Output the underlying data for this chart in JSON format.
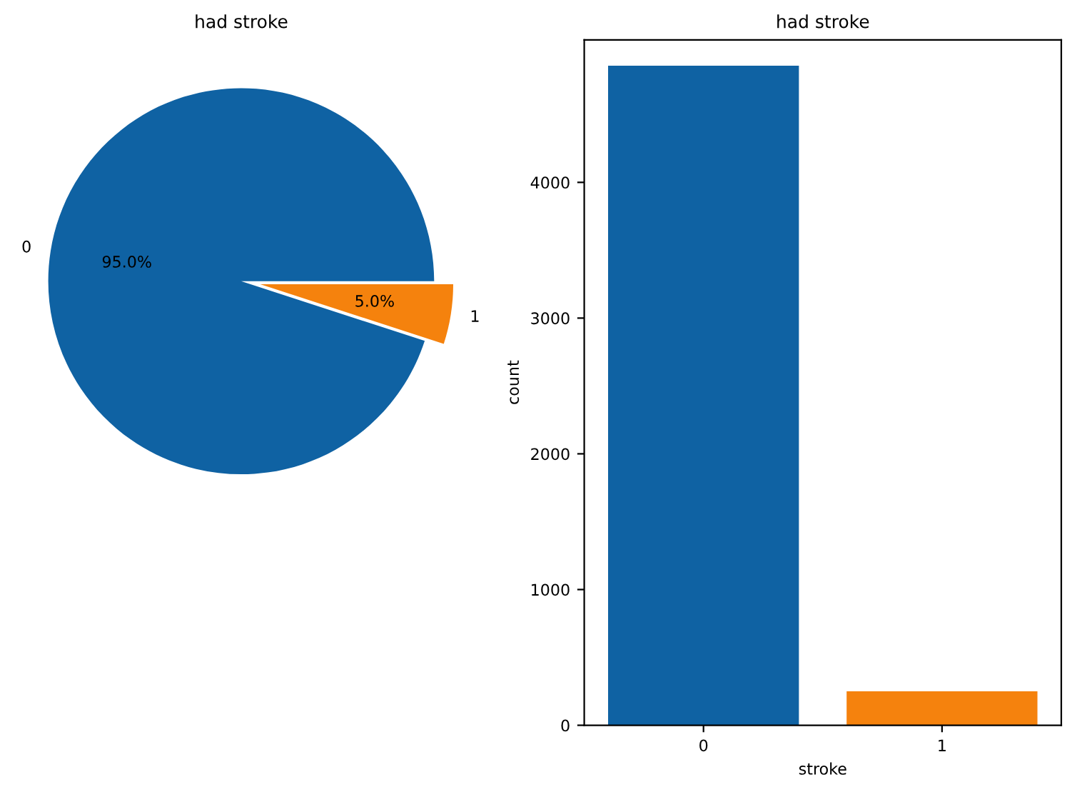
{
  "chart_data": [
    {
      "type": "pie",
      "title": "had stroke",
      "categories": [
        "0",
        "1"
      ],
      "values": [
        95.0,
        5.0
      ],
      "colors": [
        "#0f62a3",
        "#f5820d"
      ],
      "value_labels": [
        "95.0%",
        "5.0%"
      ]
    },
    {
      "type": "bar",
      "title": "had stroke",
      "xlabel": "stroke",
      "ylabel": "count",
      "categories": [
        "0",
        "1"
      ],
      "values": [
        4860,
        250
      ],
      "colors": [
        "#0f62a3",
        "#f5820d"
      ],
      "ylim": [
        0,
        5050
      ],
      "yticks": [
        0,
        1000,
        2000,
        3000,
        4000
      ],
      "grid": false
    }
  ]
}
